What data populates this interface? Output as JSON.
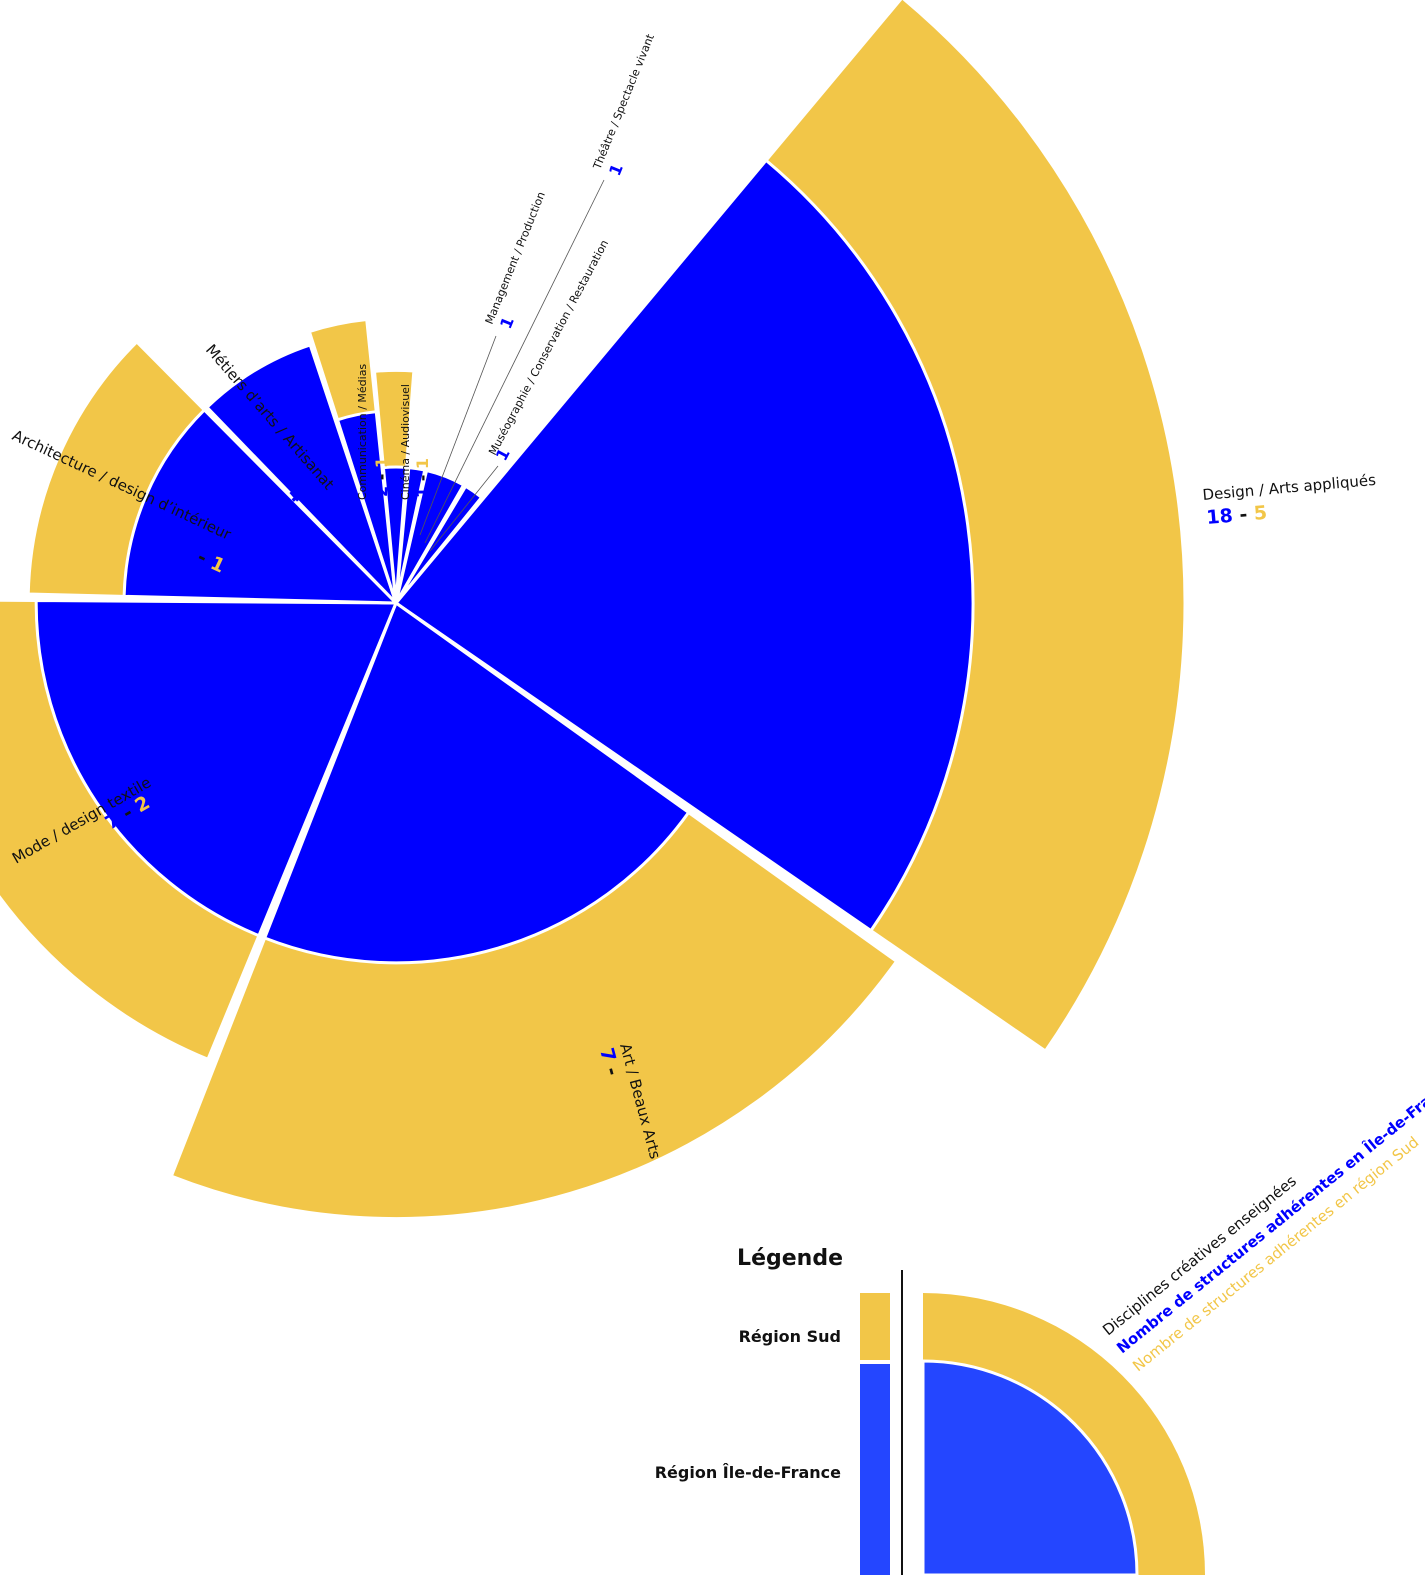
{
  "chart_data": {
    "type": "polar-bar",
    "series": [
      {
        "name": "Région Île-de-France",
        "color": "#0000ff"
      },
      {
        "name": "Région Sud",
        "color": "#f2c648"
      }
    ],
    "categories": [
      {
        "label": "Design / Arts appliqués",
        "idf": 18,
        "sud": 5,
        "values_text": [
          "18",
          "-",
          "5"
        ]
      },
      {
        "label": "Art / Beaux Arts",
        "idf": 7,
        "sud": 7,
        "values_text": [
          "7",
          "-",
          "7"
        ]
      },
      {
        "label": "Mode / design textile",
        "idf": 7,
        "sud": 2,
        "values_text": [
          "7",
          "-",
          "2"
        ]
      },
      {
        "label": "Architecture / design d’intérieur",
        "idf": 4,
        "sud": 1,
        "values_text": [
          "4",
          "-",
          "1"
        ]
      },
      {
        "label": "Métiers d’arts / Artisanat",
        "idf": 4,
        "sud": 0,
        "values_text": [
          "4",
          "",
          ""
        ]
      },
      {
        "label": "Communication / Médias",
        "idf": 2,
        "sud": 1,
        "values_text": [
          "2",
          "-",
          "1"
        ]
      },
      {
        "label": "Cinéma / Audiovisuel",
        "idf": 1,
        "sud": 1,
        "values_text": [
          "1",
          "-",
          "1"
        ]
      },
      {
        "label": "Management / Production",
        "idf": 1,
        "sud": 0,
        "values_text": [
          "1",
          "",
          ""
        ]
      },
      {
        "label": "Théâtre / Spectacle vivant",
        "idf": 1,
        "sud": 0,
        "values_text": [
          "1",
          "",
          ""
        ]
      },
      {
        "label": "Muséographie / Conservation / Restauration",
        "idf": 1,
        "sud": 0,
        "values_text": [
          "1",
          "",
          ""
        ]
      }
    ]
  },
  "legend": {
    "title": "Légende",
    "sud_label": "Région Sud",
    "idf_label": "Région Île-de-France",
    "axis_discipline": "Disciplines créatives enseignées",
    "axis_idf": "Nombre de structures adhérentes en Île-de-France",
    "axis_sud": "Nombre de structures adhérentes en région Sud",
    "idf_color": "#2446ff",
    "sud_color": "#f2c648"
  }
}
